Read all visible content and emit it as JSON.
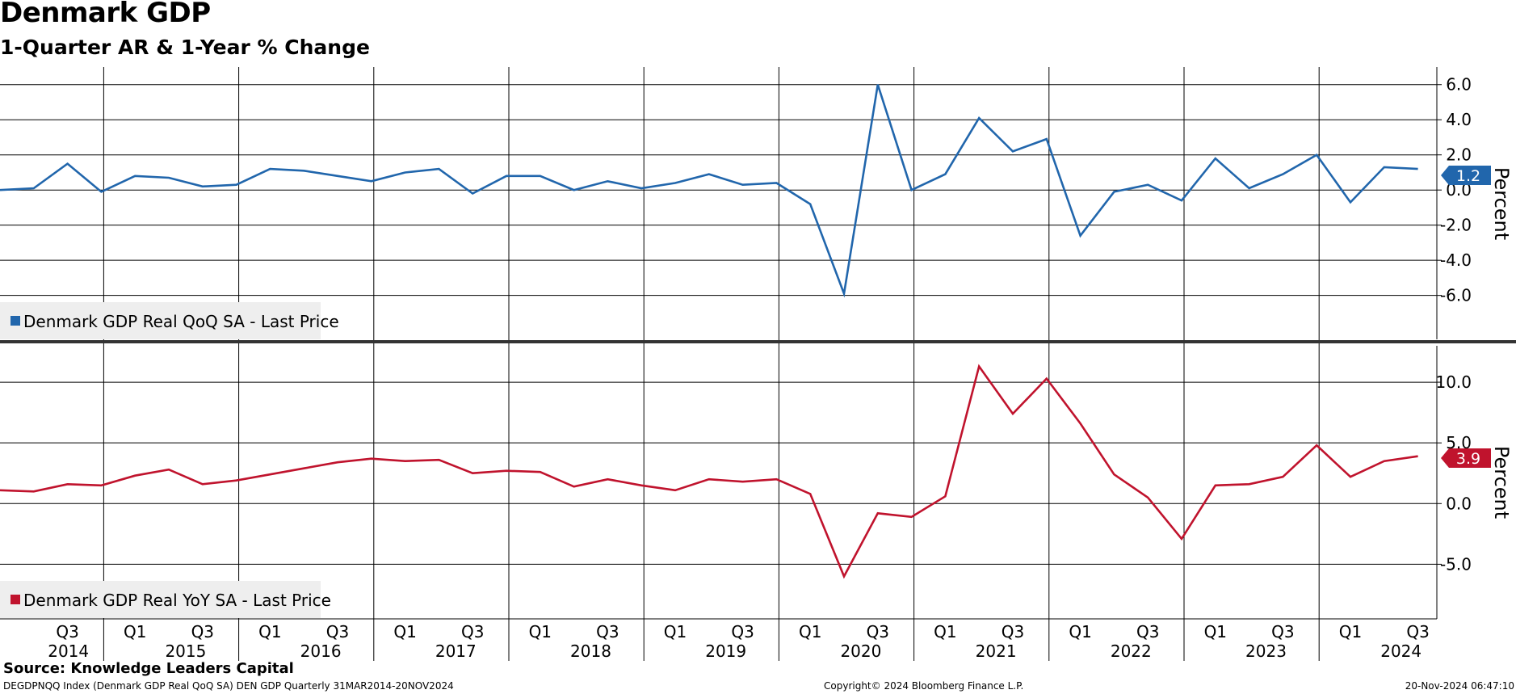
{
  "header": {
    "title": "Denmark GDP",
    "subtitle": "1-Quarter AR & 1-Year % Change"
  },
  "footer": {
    "source": "Source: Knowledge Leaders Capital",
    "left": "DEGDPNQQ Index (Denmark GDP Real QoQ SA) DEN GDP  Quarterly 31MAR2014-20NOV2024",
    "center": "Copyright© 2024 Bloomberg Finance L.P.",
    "right": "20-Nov-2024 06:47:10"
  },
  "x_axis": {
    "quarter_labels": [
      "Q3",
      "Q1",
      "Q3",
      "Q1",
      "Q3",
      "Q1",
      "Q3",
      "Q1",
      "Q3",
      "Q1",
      "Q3",
      "Q1",
      "Q3",
      "Q1",
      "Q3",
      "Q1",
      "Q3",
      "Q1",
      "Q3",
      "Q1",
      "Q3"
    ],
    "year_labels": [
      "2014",
      "2015",
      "2016",
      "2017",
      "2018",
      "2019",
      "2020",
      "2021",
      "2022",
      "2023",
      "2024"
    ]
  },
  "chart_data": [
    {
      "type": "line",
      "x": [
        "2014Q1",
        "2014Q2",
        "2014Q3",
        "2014Q4",
        "2015Q1",
        "2015Q2",
        "2015Q3",
        "2015Q4",
        "2016Q1",
        "2016Q2",
        "2016Q3",
        "2016Q4",
        "2017Q1",
        "2017Q2",
        "2017Q3",
        "2017Q4",
        "2018Q1",
        "2018Q2",
        "2018Q3",
        "2018Q4",
        "2019Q1",
        "2019Q2",
        "2019Q3",
        "2019Q4",
        "2020Q1",
        "2020Q2",
        "2020Q3",
        "2020Q4",
        "2021Q1",
        "2021Q2",
        "2021Q3",
        "2021Q4",
        "2022Q1",
        "2022Q2",
        "2022Q3",
        "2022Q4",
        "2023Q1",
        "2023Q2",
        "2023Q3",
        "2023Q4",
        "2024Q1",
        "2024Q2",
        "2024Q3"
      ],
      "series": [
        {
          "name": "Denmark GDP Real QoQ SA - Last Price",
          "color": "#2166ac",
          "values": [
            0.0,
            0.1,
            1.5,
            -0.1,
            0.8,
            0.7,
            0.2,
            0.3,
            1.2,
            1.1,
            0.8,
            0.5,
            1.0,
            1.2,
            -0.2,
            0.8,
            0.8,
            0.0,
            0.5,
            0.1,
            0.4,
            0.9,
            0.3,
            0.4,
            -0.8,
            -5.9,
            6.0,
            0.0,
            0.9,
            4.1,
            2.2,
            2.9,
            -2.6,
            -0.1,
            0.3,
            -0.6,
            1.8,
            0.1,
            0.9,
            2.0,
            -0.7,
            1.3,
            1.2
          ]
        }
      ],
      "ylabel": "Percent",
      "ylim": [
        -8.5,
        7.0
      ],
      "yticks": [
        -6.0,
        -4.0,
        -2.0,
        0.0,
        2.0,
        4.0,
        6.0
      ],
      "ytick_labels": [
        "-6.0",
        "-4.0",
        "-2.0",
        "0.0",
        "2.0",
        "4.0",
        "6.0"
      ],
      "last_value_label": "1.2",
      "legend": "bottom-left",
      "grid": true
    },
    {
      "type": "line",
      "x": [
        "2014Q1",
        "2014Q2",
        "2014Q3",
        "2014Q4",
        "2015Q1",
        "2015Q2",
        "2015Q3",
        "2015Q4",
        "2016Q1",
        "2016Q2",
        "2016Q3",
        "2016Q4",
        "2017Q1",
        "2017Q2",
        "2017Q3",
        "2017Q4",
        "2018Q1",
        "2018Q2",
        "2018Q3",
        "2018Q4",
        "2019Q1",
        "2019Q2",
        "2019Q3",
        "2019Q4",
        "2020Q1",
        "2020Q2",
        "2020Q3",
        "2020Q4",
        "2021Q1",
        "2021Q2",
        "2021Q3",
        "2021Q4",
        "2022Q1",
        "2022Q2",
        "2022Q3",
        "2022Q4",
        "2023Q1",
        "2023Q2",
        "2023Q3",
        "2023Q4",
        "2024Q1",
        "2024Q2",
        "2024Q3"
      ],
      "series": [
        {
          "name": "Denmark GDP Real YoY SA - Last Price",
          "color": "#c0132d",
          "values": [
            1.1,
            1.0,
            1.6,
            1.5,
            2.3,
            2.8,
            1.6,
            1.9,
            2.4,
            2.9,
            3.4,
            3.7,
            3.5,
            3.6,
            2.5,
            2.7,
            2.6,
            1.4,
            2.0,
            1.5,
            1.1,
            2.0,
            1.8,
            2.0,
            0.8,
            -6.0,
            -0.8,
            -1.1,
            0.6,
            11.3,
            7.4,
            10.3,
            6.6,
            2.4,
            0.5,
            -2.9,
            1.5,
            1.6,
            2.2,
            4.8,
            2.2,
            3.5,
            3.9
          ]
        }
      ],
      "ylabel": "Percent",
      "ylim": [
        -9.5,
        13.0
      ],
      "yticks": [
        -5.0,
        0.0,
        5.0,
        10.0
      ],
      "ytick_labels": [
        "-5.0",
        "0.0",
        "5.0",
        "10.0"
      ],
      "last_value_label": "3.9",
      "legend": "bottom-left",
      "grid": true
    }
  ]
}
